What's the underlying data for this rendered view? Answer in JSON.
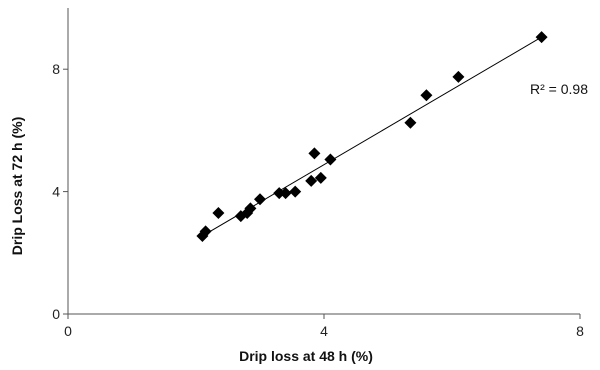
{
  "chart_data": {
    "type": "scatter",
    "title": "",
    "xlabel": "Drip loss at 48 h (%)",
    "ylabel": "Drip Loss at 72 h (%)",
    "xlim": [
      0,
      8
    ],
    "ylim": [
      0,
      10
    ],
    "xticks": [
      "0",
      "4",
      "8"
    ],
    "yticks": [
      "0",
      "4",
      "8"
    ],
    "grid": false,
    "annotation": "R² = 0.98",
    "marker": "diamond",
    "marker_color": "#000000",
    "trendline": {
      "type": "linear",
      "x_start": 2.1,
      "y_start": 2.55,
      "x_end": 7.4,
      "y_end": 9.05
    },
    "points": [
      {
        "x": 2.1,
        "y": 2.55
      },
      {
        "x": 2.15,
        "y": 2.7
      },
      {
        "x": 2.35,
        "y": 3.3
      },
      {
        "x": 2.7,
        "y": 3.2
      },
      {
        "x": 2.8,
        "y": 3.3
      },
      {
        "x": 2.85,
        "y": 3.45
      },
      {
        "x": 3.0,
        "y": 3.75
      },
      {
        "x": 3.3,
        "y": 3.95
      },
      {
        "x": 3.4,
        "y": 3.95
      },
      {
        "x": 3.55,
        "y": 4.0
      },
      {
        "x": 3.8,
        "y": 4.35
      },
      {
        "x": 3.95,
        "y": 4.45
      },
      {
        "x": 3.85,
        "y": 5.25
      },
      {
        "x": 4.1,
        "y": 5.05
      },
      {
        "x": 5.35,
        "y": 6.25
      },
      {
        "x": 5.6,
        "y": 7.15
      },
      {
        "x": 6.1,
        "y": 7.75
      },
      {
        "x": 7.4,
        "y": 9.05
      }
    ]
  }
}
